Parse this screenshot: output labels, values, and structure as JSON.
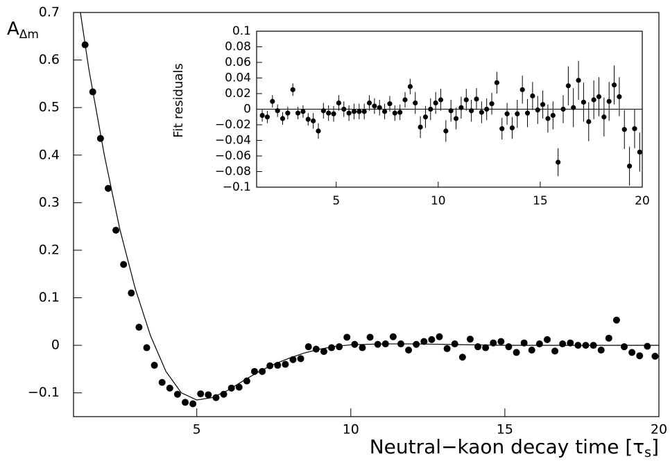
{
  "chart_data": [
    {
      "type": "scatter",
      "ylabel": [
        "A",
        "Δm"
      ],
      "xlabel": [
        "Neutral−kaon decay time [τ",
        "s",
        "]"
      ],
      "xlim": [
        1,
        20
      ],
      "ylim": [
        -0.15,
        0.7
      ],
      "xticks": [
        5,
        10,
        15,
        20
      ],
      "yticks": [
        {
          "value": -0.1,
          "label": "−0.1"
        },
        0,
        0.1,
        0.2,
        0.3,
        0.4,
        0.5,
        0.6,
        0.7
      ],
      "color": "#000000",
      "x": [
        1.375,
        1.625,
        1.875,
        2.125,
        2.375,
        2.625,
        2.875,
        3.125,
        3.375,
        3.625,
        3.875,
        4.125,
        4.375,
        4.625,
        4.875,
        5.125,
        5.375,
        5.625,
        5.875,
        6.125,
        6.375,
        6.625,
        6.875,
        7.125,
        7.375,
        7.625,
        7.875,
        8.125,
        8.375,
        8.625,
        8.875,
        9.125,
        9.375,
        9.625,
        9.875,
        10.125,
        10.375,
        10.625,
        10.875,
        11.125,
        11.375,
        11.625,
        11.875,
        12.125,
        12.375,
        12.625,
        12.875,
        13.125,
        13.375,
        13.625,
        13.875,
        14.125,
        14.375,
        14.625,
        14.875,
        15.125,
        15.375,
        15.625,
        15.875,
        16.125,
        16.375,
        16.625,
        16.875,
        17.125,
        17.375,
        17.625,
        17.875,
        18.125,
        18.375,
        18.625,
        18.875,
        19.125,
        19.375,
        19.625,
        19.875
      ],
      "values": [
        0.632,
        0.533,
        0.435,
        0.33,
        0.242,
        0.17,
        0.11,
        0.038,
        -0.005,
        -0.042,
        -0.078,
        -0.09,
        -0.103,
        -0.12,
        -0.123,
        -0.102,
        -0.104,
        -0.11,
        -0.103,
        -0.09,
        -0.088,
        -0.075,
        -0.055,
        -0.055,
        -0.043,
        -0.042,
        -0.04,
        -0.03,
        -0.028,
        -0.003,
        -0.008,
        -0.013,
        -0.005,
        -0.003,
        0.017,
        0.002,
        -0.005,
        0.017,
        0.002,
        0.003,
        0.018,
        0.003,
        -0.01,
        0.002,
        0.008,
        0.012,
        0.018,
        -0.007,
        0.003,
        -0.025,
        0.013,
        -0.003,
        -0.005,
        0.005,
        0.008,
        -0.003,
        -0.015,
        0.005,
        -0.01,
        0.003,
        0.012,
        -0.012,
        0.003,
        0.005,
        0,
        0,
        0,
        -0.01,
        0.015,
        0.053,
        -0.003,
        -0.015,
        -0.022,
        -0.002,
        -0.023
      ],
      "fit": {
        "x": [
          1.2,
          1.5,
          2.0,
          2.5,
          3.0,
          3.5,
          4.0,
          4.5,
          5.0,
          5.5,
          6.0,
          6.5,
          7.0,
          7.5,
          8.0,
          8.5,
          9.0,
          9.5,
          10.0,
          11,
          12,
          13,
          14,
          15,
          17,
          20
        ],
        "values": [
          0.71,
          0.58,
          0.4,
          0.245,
          0.12,
          0.02,
          -0.055,
          -0.1,
          -0.115,
          -0.11,
          -0.095,
          -0.075,
          -0.056,
          -0.04,
          -0.027,
          -0.016,
          -0.008,
          -0.002,
          0.001,
          0.003,
          0.003,
          0.002,
          0.001,
          0,
          0,
          0
        ]
      }
    },
    {
      "type": "errorbar",
      "ylabel": "Fit residuals",
      "xlim": [
        1.1,
        20
      ],
      "ylim": [
        -0.1,
        0.1
      ],
      "xticks": [
        5,
        10,
        15,
        20
      ],
      "yticks": [
        {
          "value": -0.1,
          "label": "−0.1"
        },
        {
          "value": -0.08,
          "label": "−0.08"
        },
        {
          "value": -0.06,
          "label": "−0.06"
        },
        {
          "value": -0.04,
          "label": "−0.04"
        },
        {
          "value": -0.02,
          "label": "−0.02"
        },
        0,
        0.02,
        0.04,
        0.06,
        0.08,
        0.1
      ],
      "reference_line": 0,
      "color": "#000000",
      "x": [
        1.375,
        1.625,
        1.875,
        2.125,
        2.375,
        2.625,
        2.875,
        3.125,
        3.375,
        3.625,
        3.875,
        4.125,
        4.375,
        4.625,
        4.875,
        5.125,
        5.375,
        5.625,
        5.875,
        6.125,
        6.375,
        6.625,
        6.875,
        7.125,
        7.375,
        7.625,
        7.875,
        8.125,
        8.375,
        8.625,
        8.875,
        9.125,
        9.375,
        9.625,
        9.875,
        10.125,
        10.375,
        10.625,
        10.875,
        11.125,
        11.375,
        11.625,
        11.875,
        12.125,
        12.375,
        12.625,
        12.875,
        13.125,
        13.375,
        13.625,
        13.875,
        14.125,
        14.375,
        14.625,
        14.875,
        15.125,
        15.375,
        15.625,
        15.875,
        16.125,
        16.375,
        16.625,
        16.875,
        17.125,
        17.375,
        17.625,
        17.875,
        18.125,
        18.375,
        18.625,
        18.875,
        19.125,
        19.375,
        19.625,
        19.875
      ],
      "values": [
        -0.008,
        -0.01,
        0.01,
        -0.002,
        -0.012,
        -0.005,
        0.025,
        -0.005,
        -0.003,
        -0.013,
        -0.015,
        -0.028,
        -0.002,
        -0.005,
        -0.006,
        0.008,
        0,
        -0.005,
        -0.003,
        -0.003,
        -0.003,
        0.008,
        0.004,
        0.002,
        -0.003,
        0.007,
        -0.005,
        -0.004,
        0.012,
        0.029,
        0.008,
        -0.023,
        -0.01,
        0,
        0.008,
        0.012,
        -0.028,
        -0.002,
        -0.012,
        0.002,
        0.012,
        -0.002,
        0.013,
        -0.004,
        0,
        0.007,
        0.034,
        -0.025,
        -0.006,
        -0.024,
        -0.006,
        0.025,
        -0.005,
        0.017,
        -0.001,
        0.006,
        -0.012,
        -0.008,
        -0.068,
        0,
        0.03,
        0.002,
        0.037,
        0.009,
        -0.016,
        0.012,
        0.016,
        -0.01,
        0.01,
        0.031,
        0.016,
        -0.026,
        -0.073,
        -0.025,
        -0.055
      ],
      "errors": [
        0.008,
        0.008,
        0.008,
        0.008,
        0.008,
        0.008,
        0.008,
        0.008,
        0.008,
        0.008,
        0.01,
        0.01,
        0.01,
        0.01,
        0.01,
        0.01,
        0.01,
        0.01,
        0.01,
        0.01,
        0.01,
        0.01,
        0.01,
        0.01,
        0.01,
        0.01,
        0.01,
        0.01,
        0.01,
        0.01,
        0.014,
        0.014,
        0.014,
        0.014,
        0.014,
        0.014,
        0.014,
        0.014,
        0.014,
        0.014,
        0.014,
        0.014,
        0.014,
        0.014,
        0.014,
        0.014,
        0.014,
        0.014,
        0.014,
        0.014,
        0.018,
        0.018,
        0.018,
        0.018,
        0.018,
        0.018,
        0.018,
        0.018,
        0.018,
        0.018,
        0.025,
        0.025,
        0.025,
        0.025,
        0.025,
        0.025,
        0.025,
        0.025,
        0.025,
        0.025,
        0.025,
        0.025,
        0.025,
        0.025,
        0.025
      ]
    }
  ]
}
